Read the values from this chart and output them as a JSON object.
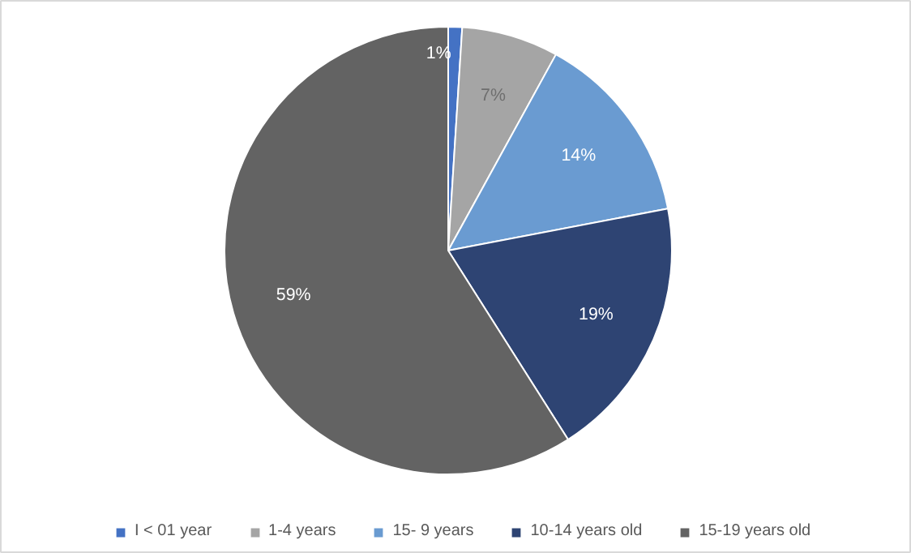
{
  "chart_data": {
    "type": "pie",
    "categories": [
      "I < 01 year",
      "1-4 years",
      "15- 9 years",
      "10-14 years old",
      "15-19 years old"
    ],
    "values": [
      1,
      7,
      14,
      19,
      59
    ],
    "colors": [
      "#4472c4",
      "#a5a5a5",
      "#6a9bd1",
      "#2e4473",
      "#636363"
    ],
    "value_labels": [
      "1%",
      "7%",
      "14%",
      "19%",
      "59%"
    ],
    "legend": "bottom"
  }
}
